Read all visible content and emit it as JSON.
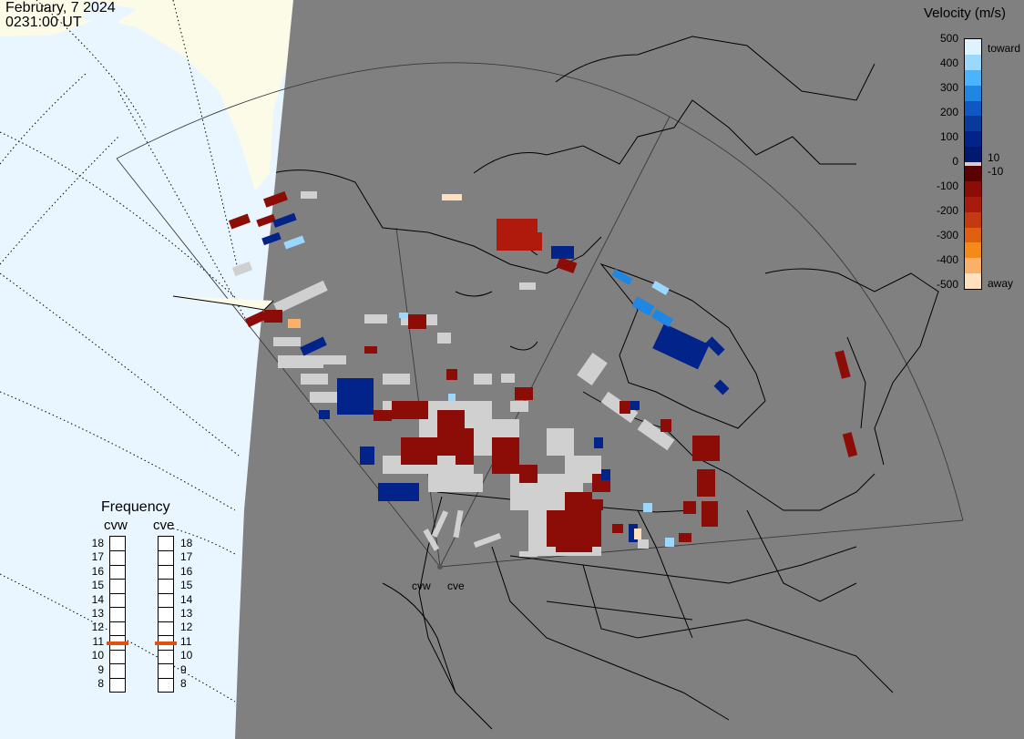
{
  "header": {
    "date": "February, 7 2024",
    "time": "0231:00 UT"
  },
  "velocity_scale": {
    "title": "Velocity (m/s)",
    "ticks": [
      "500",
      "400",
      "300",
      "200",
      "100",
      "0",
      "-100",
      "-200",
      "-300",
      "-400",
      "-500"
    ],
    "small_pos": "10",
    "small_neg": "-10",
    "toward_label": "toward",
    "away_label": "away",
    "toward_colors": [
      "#dff3ff",
      "#9ad8ff",
      "#4cb3ff",
      "#1f86e3",
      "#1157c4",
      "#073a9a",
      "#02238a",
      "#011a6e"
    ],
    "away_colors": [
      "#5a0000",
      "#8c0d08",
      "#a81a0c",
      "#c43a10",
      "#e05f10",
      "#f48a1a",
      "#fbb06a",
      "#ffe0bd"
    ],
    "ground_scatter_color": "#d0d0d0"
  },
  "frequency": {
    "title": "Frequency",
    "radars": [
      "cvw",
      "cve"
    ],
    "ticks": [
      "18",
      "17",
      "16",
      "15",
      "14",
      "13",
      "12",
      "11",
      "10",
      "9",
      "8"
    ],
    "cvw_mhz": 11,
    "cve_mhz": 11,
    "marker_color": "#e05010"
  },
  "map": {
    "radar_labels": [
      "cvw",
      "cve"
    ],
    "land_fill": "#808080",
    "ocean_fill": "#eaf6ff",
    "ice_fill": "#fcfbe8",
    "coast_color": "#000000"
  }
}
